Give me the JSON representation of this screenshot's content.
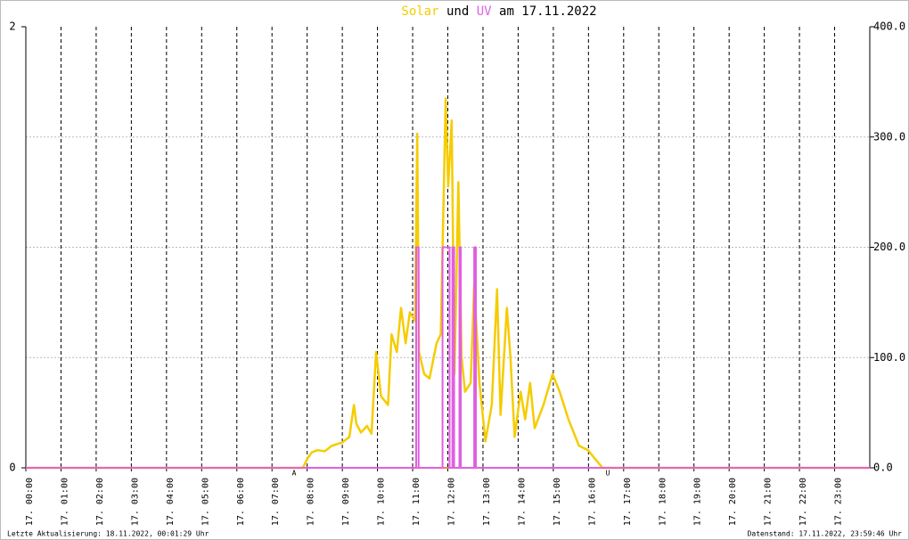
{
  "chart_data": {
    "type": "line",
    "title_parts": [
      "und",
      "am 17.11.2022"
    ],
    "xlim": [
      0,
      24
    ],
    "xticks": [
      {
        "value": 0,
        "label": "17. 00:00"
      },
      {
        "value": 1,
        "label": "17. 01:00"
      },
      {
        "value": 2,
        "label": "17. 02:00"
      },
      {
        "value": 3,
        "label": "17. 03:00"
      },
      {
        "value": 4,
        "label": "17. 04:00"
      },
      {
        "value": 5,
        "label": "17. 05:00"
      },
      {
        "value": 6,
        "label": "17. 06:00"
      },
      {
        "value": 7,
        "label": "17. 07:00"
      },
      {
        "value": 8,
        "label": "17. 08:00"
      },
      {
        "value": 9,
        "label": "17. 09:00"
      },
      {
        "value": 10,
        "label": "17. 10:00"
      },
      {
        "value": 11,
        "label": "17. 11:00"
      },
      {
        "value": 12,
        "label": "17. 12:00"
      },
      {
        "value": 13,
        "label": "17. 13:00"
      },
      {
        "value": 14,
        "label": "17. 14:00"
      },
      {
        "value": 15,
        "label": "17. 15:00"
      },
      {
        "value": 16,
        "label": "17. 16:00"
      },
      {
        "value": 17,
        "label": "17. 17:00"
      },
      {
        "value": 18,
        "label": "17. 18:00"
      },
      {
        "value": 19,
        "label": "17. 19:00"
      },
      {
        "value": 20,
        "label": "17. 20:00"
      },
      {
        "value": 21,
        "label": "17. 21:00"
      },
      {
        "value": 22,
        "label": "17. 22:00"
      },
      {
        "value": 23,
        "label": "17. 23:00"
      }
    ],
    "ylim": [
      0,
      2
    ],
    "yticks": [
      0,
      2
    ],
    "y2lim": [
      0,
      400
    ],
    "y2ticks": [
      {
        "value": 0,
        "label": "0.0"
      },
      {
        "value": 100,
        "label": "100.0"
      },
      {
        "value": 200,
        "label": "200.0"
      },
      {
        "value": 300,
        "label": "300.0"
      },
      {
        "value": 400,
        "label": "400.0"
      }
    ],
    "grid": true,
    "series": [
      {
        "name": "Solar",
        "color": "#f5cc00",
        "axis": "y2",
        "x": [
          0,
          7.88,
          8.0,
          8.13,
          8.3,
          8.5,
          8.7,
          9.0,
          9.2,
          9.33,
          9.4,
          9.53,
          9.7,
          9.83,
          9.96,
          10.1,
          10.3,
          10.4,
          10.55,
          10.67,
          10.8,
          10.92,
          11.07,
          11.13,
          11.18,
          11.33,
          11.48,
          11.68,
          11.8,
          11.94,
          12.01,
          12.11,
          12.19,
          12.3,
          12.39,
          12.49,
          12.65,
          12.75,
          12.9,
          13.07,
          13.25,
          13.4,
          13.5,
          13.68,
          13.78,
          13.9,
          14.07,
          14.2,
          14.34,
          14.47,
          14.72,
          14.98,
          15.18,
          15.43,
          15.73,
          15.99,
          16.19,
          16.4,
          24
        ],
        "values": [
          0,
          0,
          8,
          14,
          16,
          15,
          20,
          23,
          28,
          57,
          40,
          32,
          38,
          31,
          105,
          65,
          57,
          121,
          105,
          145,
          113,
          141,
          133,
          303,
          105,
          85,
          81,
          113,
          121,
          335,
          255,
          315,
          85,
          259,
          101,
          69,
          77,
          166,
          77,
          24,
          57,
          162,
          48,
          145,
          101,
          28,
          69,
          44,
          77,
          36,
          57,
          85,
          69,
          44,
          20,
          16,
          8,
          0,
          0
        ]
      },
      {
        "name": "UV",
        "color": "#e060e0",
        "x": [
          0,
          11.1,
          11.1,
          11.17,
          11.17,
          11.85,
          11.85,
          12.05,
          12.05,
          12.13,
          12.13,
          12.18,
          12.18,
          12.33,
          12.33,
          12.37,
          12.37,
          12.75,
          12.75,
          12.8,
          12.8,
          24
        ],
        "values": [
          0,
          0,
          1,
          1,
          0,
          0,
          1,
          1,
          0,
          0,
          1,
          1,
          0,
          0,
          1,
          1,
          0,
          0,
          1,
          1,
          0,
          0
        ]
      }
    ],
    "annotations": [
      {
        "text": "A",
        "x": 7.63
      },
      {
        "text": "U",
        "x": 16.55
      }
    ],
    "footer_left": "Letzte Aktualisierung: 18.11.2022, 00:01:29 Uhr",
    "footer_right": "Datenstand: 17.11.2022, 23:59:46 Uhr"
  }
}
